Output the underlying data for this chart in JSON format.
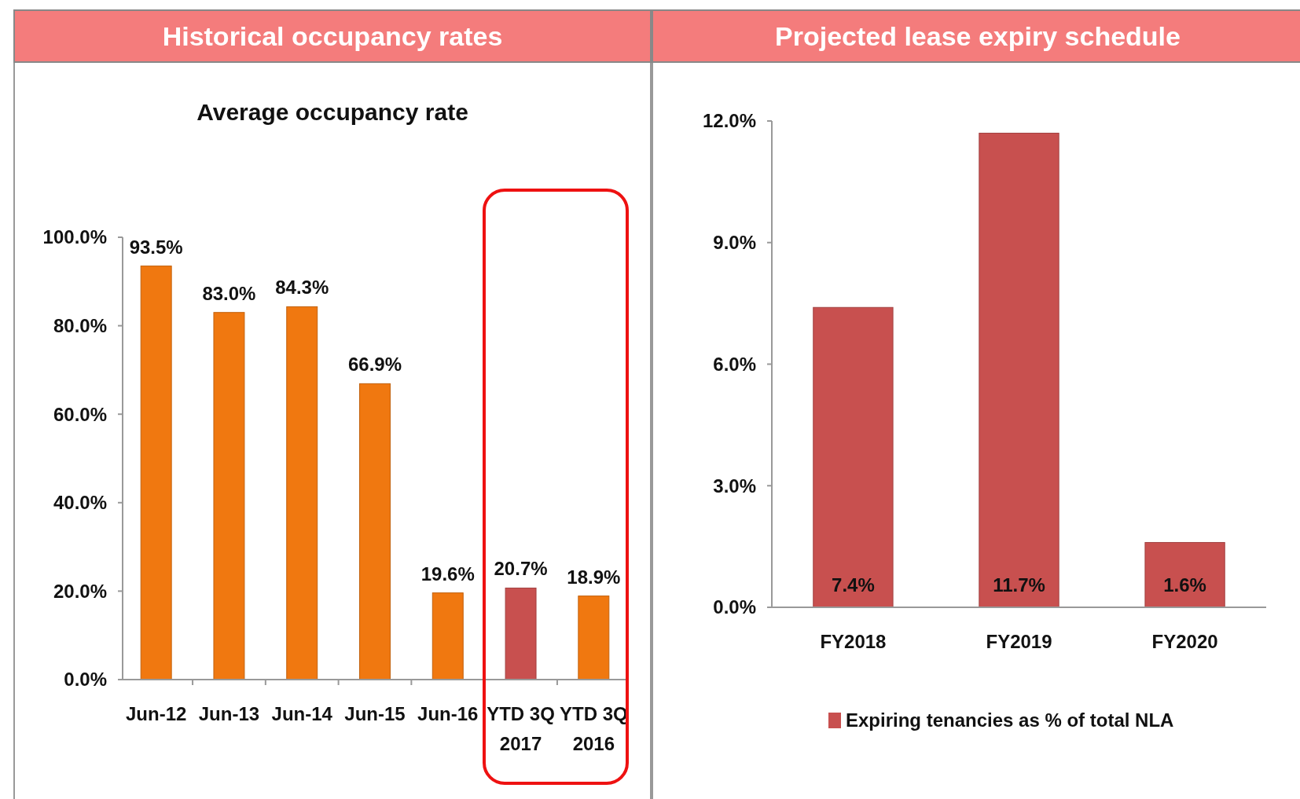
{
  "chart_data": [
    {
      "type": "bar",
      "title": "Historical occupancy rates",
      "subtitle": "Average occupancy rate",
      "categories": [
        "Jun-12",
        "Jun-13",
        "Jun-14",
        "Jun-15",
        "Jun-16",
        "YTD 3Q 2017",
        "YTD 3Q 2016"
      ],
      "values": [
        93.5,
        83.0,
        84.3,
        66.9,
        19.6,
        20.7,
        18.9
      ],
      "colors": [
        "#f07810",
        "#f07810",
        "#f07810",
        "#f07810",
        "#f07810",
        "#c8504f",
        "#f07810"
      ],
      "value_labels": [
        "93.5%",
        "83.0%",
        "84.3%",
        "66.9%",
        "19.6%",
        "20.7%",
        "18.9%"
      ],
      "ylim": [
        0,
        100
      ],
      "yticks": [
        {
          "value": 0,
          "label": "0.0%"
        },
        {
          "value": 20,
          "label": "20.0%"
        },
        {
          "value": 40,
          "label": "40.0%"
        },
        {
          "value": 60,
          "label": "60.0%"
        },
        {
          "value": 80,
          "label": "80.0%"
        },
        {
          "value": 100,
          "label": "100.0%"
        }
      ],
      "grid": false,
      "legend": false
    },
    {
      "type": "bar",
      "title": "Projected lease expiry schedule",
      "categories": [
        "FY2018",
        "FY2019",
        "FY2020"
      ],
      "series": [
        {
          "name": "Expiring tenancies as % of total NLA",
          "color": "#c8504f",
          "values": [
            7.4,
            11.7,
            1.6
          ],
          "value_labels": [
            "7.4%",
            "11.7%",
            "1.6%"
          ]
        }
      ],
      "ylim": [
        0,
        12
      ],
      "yticks": [
        {
          "value": 0,
          "label": "0.0%"
        },
        {
          "value": 3,
          "label": "3.0%"
        },
        {
          "value": 6,
          "label": "6.0%"
        },
        {
          "value": 9,
          "label": "9.0%"
        },
        {
          "value": 12,
          "label": "12.0%"
        }
      ],
      "grid": false,
      "legend": "bottom"
    }
  ]
}
